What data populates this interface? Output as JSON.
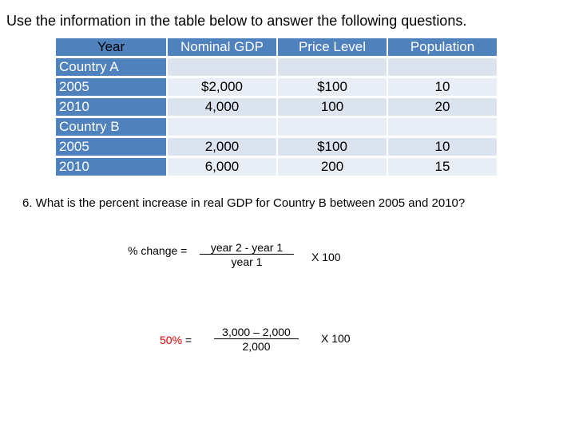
{
  "intro": "Use the information in the table below to answer the following questions.",
  "table": {
    "headers": [
      "Year",
      "Nominal GDP",
      "Price Level",
      "Population"
    ],
    "rows": [
      {
        "year": "Country A",
        "gdp": "",
        "price": "",
        "pop": ""
      },
      {
        "year": "2005",
        "gdp": "$2,000",
        "price": "$100",
        "pop": "10"
      },
      {
        "year": "2010",
        "gdp": "4,000",
        "price": "100",
        "pop": "20"
      },
      {
        "year": "Country B",
        "gdp": "",
        "price": "",
        "pop": ""
      },
      {
        "year": "2005",
        "gdp": "2,000",
        "price": "$100",
        "pop": "10"
      },
      {
        "year": "2010",
        "gdp": "6,000",
        "price": "200",
        "pop": "15"
      }
    ]
  },
  "question": "6.  What is the percent increase in real GDP for Country B between 2005 and 2010?",
  "formula": {
    "label": "% change =",
    "numerator": "year 2  -  year 1",
    "denominator": "year 1",
    "times": "X  100"
  },
  "answer": {
    "result": "50%",
    "equals": "=",
    "numerator": "3,000 – 2,000",
    "denominator": "2,000",
    "times": "X  100",
    "result_color": "#e00000"
  }
}
